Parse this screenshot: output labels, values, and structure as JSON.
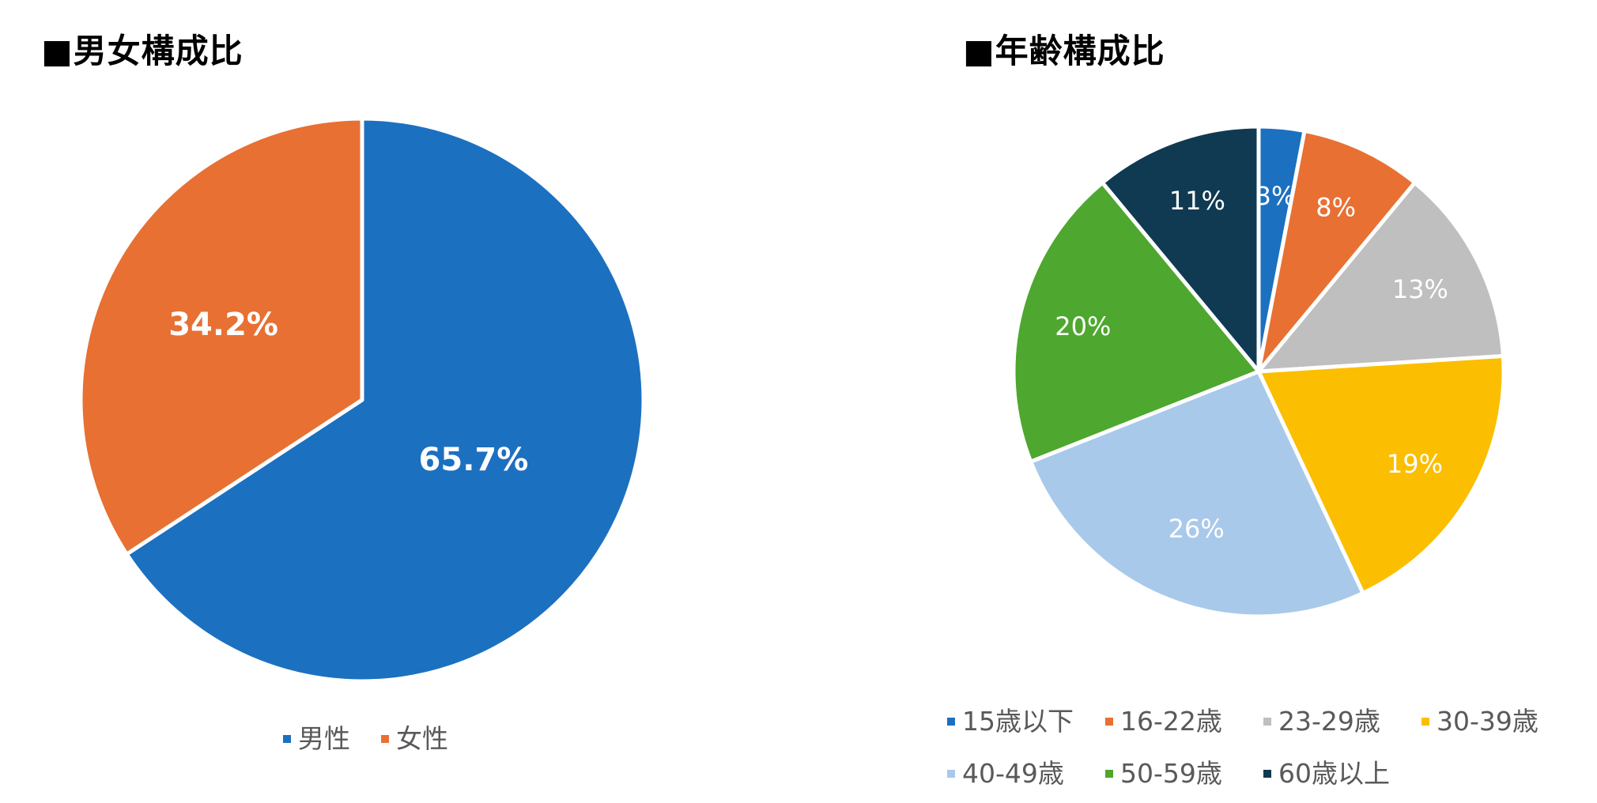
{
  "chart_data": [
    {
      "type": "pie",
      "title": "■男女構成比",
      "slices": [
        {
          "label": "男性",
          "value": 65.7,
          "display": "65.7%",
          "color": "#1c70c0"
        },
        {
          "label": "女性",
          "value": 34.2,
          "display": "34.2%",
          "color": "#e87033"
        }
      ],
      "legend": "bottom"
    },
    {
      "type": "pie",
      "title": "■年齢構成比",
      "slices": [
        {
          "label": "15歳以下",
          "value": 3,
          "display": "3%",
          "color": "#1c70c0"
        },
        {
          "label": "16-22歳",
          "value": 8,
          "display": "8%",
          "color": "#e87033"
        },
        {
          "label": "23-29歳",
          "value": 13,
          "display": "13%",
          "color": "#bfbfbf"
        },
        {
          "label": "30-39歳",
          "value": 19,
          "display": "19%",
          "color": "#fbbe00"
        },
        {
          "label": "40-49歳",
          "value": 26,
          "display": "26%",
          "color": "#a8c9ea"
        },
        {
          "label": "50-59歳",
          "value": 20,
          "display": "20%",
          "color": "#4ea72e"
        },
        {
          "label": "60歳以上",
          "value": 11,
          "display": "11%",
          "color": "#0f3a52"
        }
      ],
      "legend": "bottom"
    }
  ]
}
